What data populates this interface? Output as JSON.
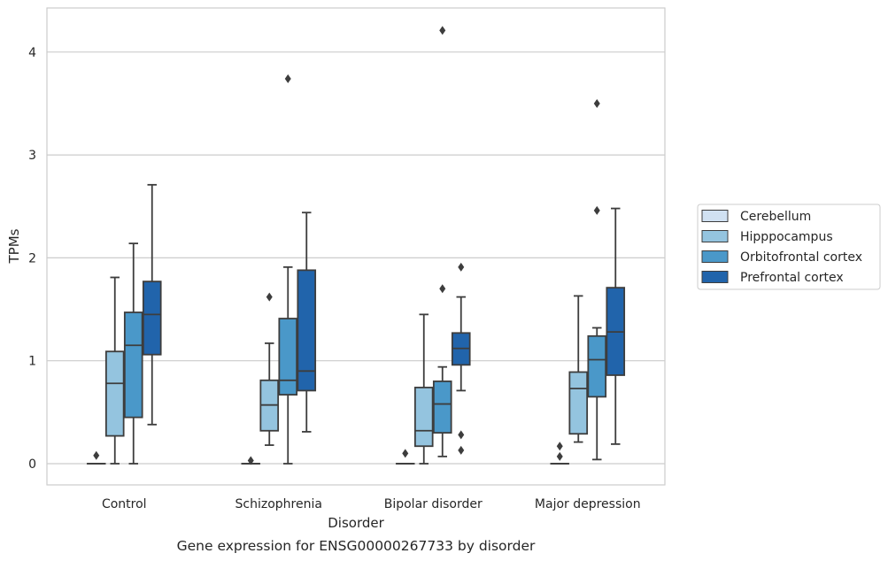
{
  "caption": "Gene expression for ENSG00000267733 by disorder",
  "chart_data": {
    "type": "box",
    "xlabel": "Disorder",
    "ylabel": "TPMs",
    "ylim": [
      -0.2,
      4.3
    ],
    "yticks": [
      0,
      1,
      2,
      3,
      4
    ],
    "grid": true,
    "legend_position": "right",
    "categories": [
      "Control",
      "Schizophrenia",
      "Bipolar disorder",
      "Major depression"
    ],
    "series": [
      {
        "name": "Cerebellum",
        "color": "#d0e1f2",
        "boxes": [
          {
            "whislo": 0,
            "q1": 0,
            "med": 0,
            "q3": 0,
            "whishi": 0,
            "fliers": [
              0.08
            ]
          },
          {
            "whislo": 0,
            "q1": 0,
            "med": 0,
            "q3": 0,
            "whishi": 0,
            "fliers": [
              0.03
            ]
          },
          {
            "whislo": 0,
            "q1": 0,
            "med": 0,
            "q3": 0,
            "whishi": 0,
            "fliers": [
              0.1
            ]
          },
          {
            "whislo": 0,
            "q1": 0,
            "med": 0,
            "q3": 0,
            "whishi": 0,
            "fliers": [
              0.07,
              0.17
            ]
          }
        ]
      },
      {
        "name": "Hipppocampus",
        "color": "#94c4df",
        "boxes": [
          {
            "whislo": 0,
            "q1": 0.27,
            "med": 0.78,
            "q3": 1.09,
            "whishi": 1.81,
            "fliers": []
          },
          {
            "whislo": 0.18,
            "q1": 0.32,
            "med": 0.57,
            "q3": 0.81,
            "whishi": 1.17,
            "fliers": [
              1.62
            ]
          },
          {
            "whislo": 0,
            "q1": 0.17,
            "med": 0.32,
            "q3": 0.74,
            "whishi": 1.45,
            "fliers": []
          },
          {
            "whislo": 0.21,
            "q1": 0.29,
            "med": 0.73,
            "q3": 0.89,
            "whishi": 1.63,
            "fliers": []
          }
        ]
      },
      {
        "name": "Orbitofrontal cortex",
        "color": "#4a98c9",
        "boxes": [
          {
            "whislo": 0,
            "q1": 0.45,
            "med": 1.15,
            "q3": 1.47,
            "whishi": 2.14,
            "fliers": []
          },
          {
            "whislo": 0,
            "q1": 0.67,
            "med": 0.81,
            "q3": 1.41,
            "whishi": 1.91,
            "fliers": [
              3.74
            ]
          },
          {
            "whislo": 0.07,
            "q1": 0.3,
            "med": 0.58,
            "q3": 0.8,
            "whishi": 0.94,
            "fliers": [
              1.7,
              4.21
            ]
          },
          {
            "whislo": 0.04,
            "q1": 0.65,
            "med": 1.01,
            "q3": 1.24,
            "whishi": 1.32,
            "fliers": [
              2.46,
              3.5
            ]
          }
        ]
      },
      {
        "name": "Prefrontal cortex",
        "color": "#2164ab",
        "boxes": [
          {
            "whislo": 0.38,
            "q1": 1.06,
            "med": 1.45,
            "q3": 1.77,
            "whishi": 2.71,
            "fliers": []
          },
          {
            "whislo": 0.31,
            "q1": 0.71,
            "med": 0.9,
            "q3": 1.88,
            "whishi": 2.44,
            "fliers": []
          },
          {
            "whislo": 0.71,
            "q1": 0.96,
            "med": 1.12,
            "q3": 1.27,
            "whishi": 1.62,
            "fliers": [
              0.13,
              0.28,
              1.91
            ]
          },
          {
            "whislo": 0.19,
            "q1": 0.86,
            "med": 1.28,
            "q3": 1.71,
            "whishi": 2.48,
            "fliers": []
          }
        ]
      }
    ]
  }
}
